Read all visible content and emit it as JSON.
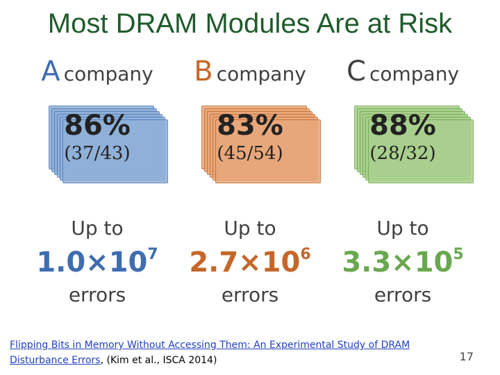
{
  "title": "Most DRAM Modules Are at Risk",
  "companies": [
    {
      "letter": "A",
      "word": "company",
      "percent": "86%",
      "fraction": "(37/43)",
      "upto": "Up to",
      "count_base": "1.0×10",
      "count_exp": "7",
      "errors": "errors",
      "module_color": "#8fb0d8",
      "module_edge": "#4f78b5",
      "count_color": "#3f6db0"
    },
    {
      "letter": "B",
      "word": "company",
      "percent": "83%",
      "fraction": "(45/54)",
      "upto": "Up to",
      "count_base": "2.7×10",
      "count_exp": "6",
      "errors": "errors",
      "module_color": "#e8a77a",
      "module_edge": "#c46a2f",
      "count_color": "#c5672a"
    },
    {
      "letter": "C",
      "word": "company",
      "percent": "88%",
      "fraction": "(28/32)",
      "upto": "Up to",
      "count_base": "3.3×10",
      "count_exp": "5",
      "errors": "errors",
      "module_color": "#a9cf8e",
      "module_edge": "#6ea84b",
      "count_color": "#6aa84f"
    }
  ],
  "reference": {
    "link_text": "Flipping Bits in Memory Without Accessing Them: An Experimental Study of DRAM Disturbance Errors",
    "suffix": ", (Kim et al., ISCA 2014)"
  },
  "page_number": "17",
  "colors": {
    "title": "#1f5b2b"
  }
}
